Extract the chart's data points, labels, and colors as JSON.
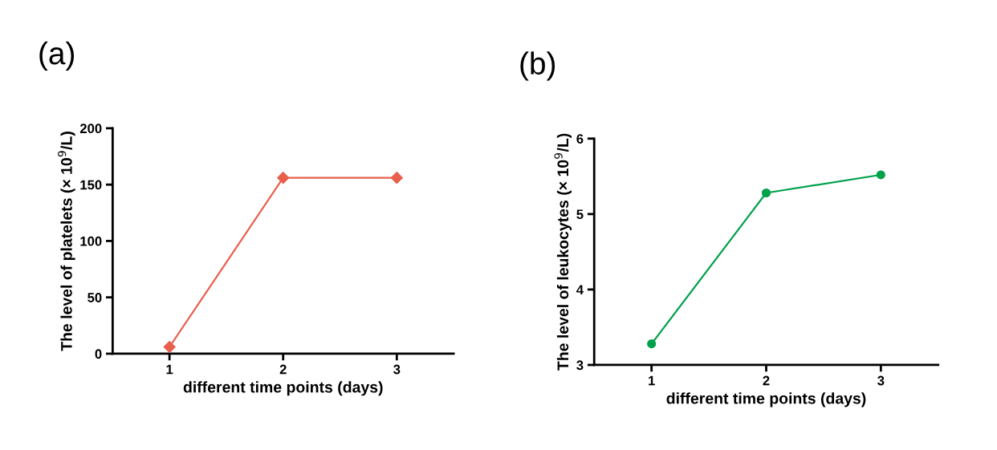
{
  "chart_data": [
    {
      "type": "line",
      "title": "(a)",
      "xlabel": "different time points (days)",
      "ylabel": "The level of platelets (× 10$^{9}$/L)",
      "x": [
        1,
        2,
        3
      ],
      "xlim": [
        0.5,
        3.5
      ],
      "xticks": [
        1,
        2,
        3
      ],
      "ylim": [
        0,
        200
      ],
      "yticks": [
        0,
        50,
        100,
        150,
        200
      ],
      "grid": false,
      "marker": "diamond",
      "line_style": "solid",
      "series": [
        {
          "color": "#e8604c",
          "values": [
            6,
            156,
            156
          ]
        }
      ]
    },
    {
      "type": "line",
      "title": "(b)",
      "xlabel": "different time points (days)",
      "ylabel": "The level of leukocytes (× 10$^{9}$/L)",
      "x": [
        1,
        2,
        3
      ],
      "xlim": [
        0.5,
        3.5
      ],
      "xticks": [
        1,
        2,
        3
      ],
      "ylim": [
        3,
        6
      ],
      "yticks": [
        3,
        4,
        5,
        6
      ],
      "grid": false,
      "marker": "circle",
      "line_style": "solid",
      "series": [
        {
          "color": "#00a14b",
          "values": [
            3.28,
            5.28,
            5.52
          ]
        }
      ]
    }
  ]
}
